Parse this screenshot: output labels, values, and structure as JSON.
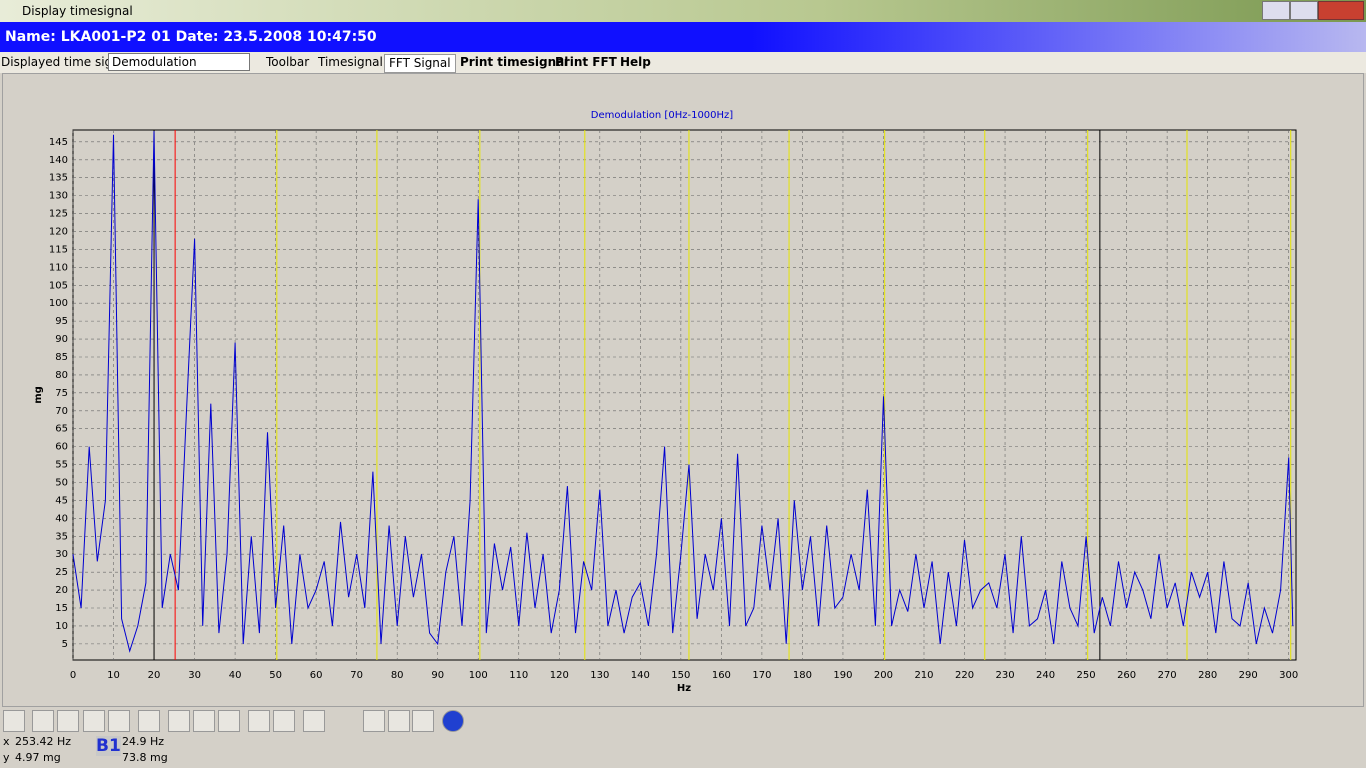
{
  "window": {
    "title": "Display timesignal"
  },
  "header": {
    "name": "Name: LKA001-P2 01 Date: 23.5.2008 10:47:50"
  },
  "toolbar": {
    "label": "Displayed time signal",
    "select": "Demodulation",
    "menu": [
      "Toolbar",
      "Timesignal",
      "FFT Signal",
      "Print timesignal",
      "Print FFT",
      "Help"
    ]
  },
  "chart_data": {
    "type": "line",
    "title": "Demodulation [0Hz-1000Hz]",
    "x_label": "Hz",
    "y_label": "mg",
    "color": "#0000d0",
    "grid": true,
    "xlim": [
      0,
      301.8
    ],
    "ylim": [
      0.5,
      148.3
    ],
    "xticks": [
      0,
      10,
      20,
      30,
      40,
      50,
      60,
      70,
      80,
      90,
      100,
      110,
      120,
      130,
      140,
      150,
      160,
      170,
      180,
      190,
      200,
      210,
      220,
      230,
      240,
      250,
      260,
      270,
      280,
      290,
      300
    ],
    "yticks": [
      5,
      10,
      15,
      20,
      25,
      30,
      35,
      40,
      45,
      50,
      55,
      60,
      65,
      70,
      75,
      80,
      85,
      90,
      95,
      100,
      105,
      110,
      115,
      120,
      125,
      130,
      135,
      140,
      145
    ],
    "harmonic_lines": [
      50.3,
      75,
      100.4,
      126.3,
      152,
      176.7,
      200.3,
      225,
      250.4,
      274.9,
      300.5
    ],
    "harmonic_color": "#e6e600",
    "cursor_lines": [
      20,
      253.4
    ],
    "cursor_color": "#000000",
    "marker_line": 25.2,
    "marker_color": "#ff0000",
    "x": [
      0,
      2,
      4,
      6,
      8,
      10,
      12,
      14,
      16,
      18,
      20,
      22,
      24,
      26,
      28,
      30,
      32,
      34,
      36,
      38,
      40,
      42,
      44,
      46,
      48,
      50,
      52,
      54,
      56,
      58,
      60,
      62,
      64,
      66,
      68,
      70,
      72,
      74,
      76,
      78,
      80,
      82,
      84,
      86,
      88,
      90,
      92,
      94,
      96,
      98,
      100,
      102,
      104,
      106,
      108,
      110,
      112,
      114,
      116,
      118,
      120,
      122,
      124,
      126,
      128,
      130,
      132,
      134,
      136,
      138,
      140,
      142,
      144,
      146,
      148,
      150,
      152,
      154,
      156,
      158,
      160,
      162,
      164,
      166,
      168,
      170,
      172,
      174,
      176,
      178,
      180,
      182,
      184,
      186,
      188,
      190,
      192,
      194,
      196,
      198,
      200,
      202,
      204,
      206,
      208,
      210,
      212,
      214,
      216,
      218,
      220,
      222,
      224,
      226,
      228,
      230,
      232,
      234,
      236,
      238,
      240,
      242,
      244,
      246,
      248,
      250,
      252,
      254,
      256,
      258,
      260,
      262,
      264,
      266,
      268,
      270,
      272,
      274,
      276,
      278,
      280,
      282,
      284,
      286,
      288,
      290,
      292,
      294,
      296,
      298,
      300,
      301
    ],
    "values": [
      30,
      15,
      60,
      28,
      45,
      147,
      12,
      3,
      10,
      22,
      148,
      15,
      30,
      20,
      70,
      118,
      10,
      72,
      8,
      30,
      89,
      5,
      35,
      8,
      64,
      15,
      38,
      5,
      30,
      15,
      20,
      28,
      10,
      39,
      18,
      30,
      15,
      53,
      5,
      38,
      10,
      35,
      18,
      30,
      8,
      5,
      25,
      35,
      10,
      45,
      129,
      8,
      33,
      20,
      32,
      10,
      36,
      15,
      30,
      8,
      20,
      49,
      8,
      28,
      20,
      48,
      10,
      20,
      8,
      18,
      22,
      10,
      30,
      60,
      8,
      30,
      55,
      12,
      30,
      20,
      40,
      10,
      58,
      10,
      15,
      38,
      20,
      40,
      5,
      45,
      20,
      35,
      10,
      38,
      15,
      18,
      30,
      20,
      48,
      10,
      74,
      10,
      20,
      14,
      30,
      15,
      28,
      5,
      25,
      10,
      34,
      15,
      20,
      22,
      15,
      30,
      8,
      35,
      10,
      12,
      20,
      5,
      28,
      15,
      10,
      35,
      8,
      18,
      10,
      28,
      15,
      25,
      20,
      12,
      30,
      15,
      22,
      10,
      25,
      18,
      25,
      8,
      28,
      12,
      10,
      22,
      5,
      15,
      8,
      20,
      57,
      10
    ]
  },
  "status": {
    "x_label": "x",
    "x_value": "253.42 Hz",
    "y_label": "y",
    "y_value": "4.97 mg",
    "cursor": "B1",
    "cursor_x": "24.9 Hz",
    "cursor_y": "73.8 mg"
  }
}
